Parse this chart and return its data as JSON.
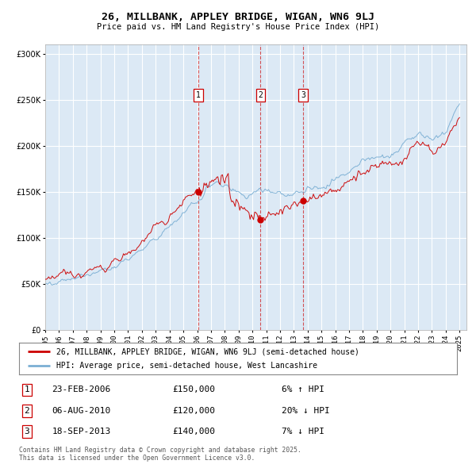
{
  "title": "26, MILLBANK, APPLEY BRIDGE, WIGAN, WN6 9LJ",
  "subtitle": "Price paid vs. HM Land Registry's House Price Index (HPI)",
  "legend_line1": "26, MILLBANK, APPLEY BRIDGE, WIGAN, WN6 9LJ (semi-detached house)",
  "legend_line2": "HPI: Average price, semi-detached house, West Lancashire",
  "transaction1_date": "23-FEB-2006",
  "transaction1_price": 150000,
  "transaction1_hpi": "6% ↑ HPI",
  "transaction2_date": "06-AUG-2010",
  "transaction2_price": 120000,
  "transaction2_hpi": "20% ↓ HPI",
  "transaction3_date": "18-SEP-2013",
  "transaction3_price": 140000,
  "transaction3_hpi": "7% ↓ HPI",
  "footer": "Contains HM Land Registry data © Crown copyright and database right 2025.\nThis data is licensed under the Open Government Licence v3.0.",
  "plot_bg_color": "#dce9f5",
  "red_line_color": "#cc0000",
  "blue_line_color": "#7bafd4",
  "dashed_line_color": "#cc0000",
  "grid_color": "#ffffff",
  "ylim": [
    0,
    310000
  ],
  "yticks": [
    0,
    50000,
    100000,
    150000,
    200000,
    250000,
    300000
  ]
}
